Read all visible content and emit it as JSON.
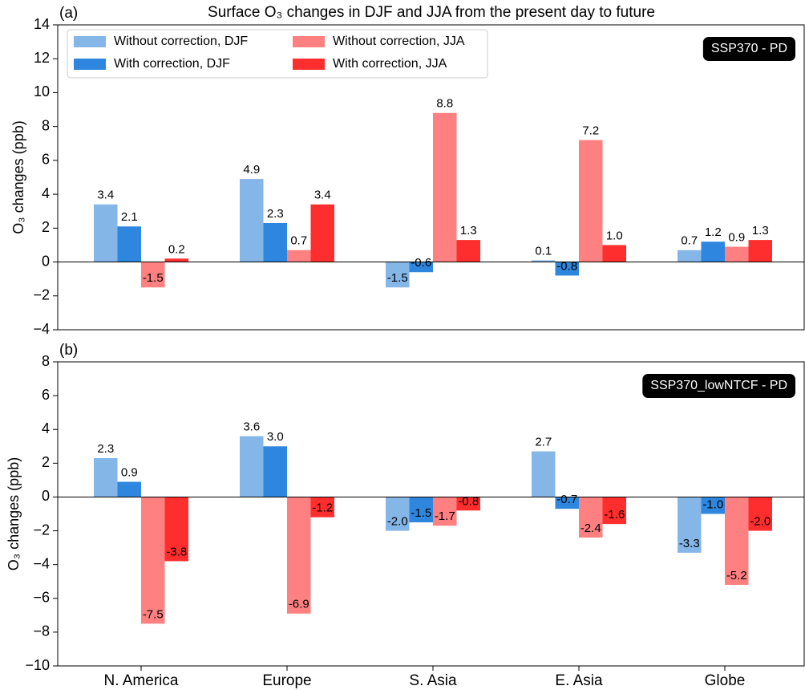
{
  "chart_data": [
    {
      "type": "bar",
      "title": "Surface O₃ changes in DJF and JJA from the present day to future",
      "panel_label": "(a)",
      "ylabel": "O₃ changes (ppb)",
      "annotation": "SSP370 - PD",
      "legend": "upper left",
      "ylim": [
        -4,
        14
      ],
      "yticks": [
        {
          "value": -4,
          "label": "−4"
        },
        {
          "value": -2,
          "label": "−2"
        },
        0,
        2,
        4,
        6,
        8,
        10,
        12,
        14
      ],
      "series": [
        {
          "name": "Without correction, DJF",
          "color": "#85b6e8",
          "values": [
            3.4,
            4.9,
            -1.5,
            0.1,
            0.7
          ],
          "value_labels": [
            "3.4",
            "4.9",
            "-1.5",
            "0.1",
            "0.7"
          ]
        },
        {
          "name": "With correction, DJF",
          "color": "#2f86de",
          "values": [
            2.1,
            2.3,
            -0.6,
            -0.8,
            1.2
          ],
          "value_labels": [
            "2.1",
            "2.3",
            "-0.6",
            "-0.8",
            "1.2"
          ]
        },
        {
          "name": "Without correction, JJA",
          "color": "#ff8080",
          "values": [
            -1.5,
            0.7,
            8.8,
            7.2,
            0.9
          ],
          "value_labels": [
            "-1.5",
            "0.7",
            "8.8",
            "7.2",
            "0.9"
          ]
        },
        {
          "name": "With correction, JJA",
          "color": "#ff2e2e",
          "values": [
            0.2,
            3.4,
            1.3,
            1.0,
            1.3
          ],
          "value_labels": [
            "0.2",
            "3.4",
            "1.3",
            "1.0",
            "1.3"
          ]
        }
      ]
    },
    {
      "type": "bar",
      "panel_label": "(b)",
      "ylabel": "O₃ changes (ppb)",
      "annotation": "SSP370_lowNTCF - PD",
      "categories": [
        "N. America",
        "Europe",
        "S. Asia",
        "E. Asia",
        "Globe"
      ],
      "ylim": [
        -10,
        8
      ],
      "yticks": [
        {
          "value": -10,
          "label": "−10"
        },
        {
          "value": -8,
          "label": "−8"
        },
        {
          "value": -6,
          "label": "−6"
        },
        {
          "value": -4,
          "label": "−4"
        },
        {
          "value": -2,
          "label": "−2"
        },
        0,
        2,
        4,
        6,
        8
      ],
      "series": [
        {
          "color": "#85b6e8",
          "values": [
            2.3,
            3.6,
            -2.0,
            2.7,
            -3.3
          ],
          "value_labels": [
            "2.3",
            "3.6",
            "-2.0",
            "2.7",
            "-3.3"
          ]
        },
        {
          "color": "#2f86de",
          "values": [
            0.9,
            3.0,
            -1.5,
            -0.7,
            -1.0
          ],
          "value_labels": [
            "0.9",
            "3.0",
            "-1.5",
            "-0.7",
            "-1.0"
          ]
        },
        {
          "color": "#ff8080",
          "values": [
            -7.5,
            -6.9,
            -1.7,
            -2.4,
            -5.2
          ],
          "value_labels": [
            "-7.5",
            "-6.9",
            "-1.7",
            "-2.4",
            "-5.2"
          ]
        },
        {
          "color": "#ff2e2e",
          "values": [
            -3.8,
            -1.2,
            -0.8,
            -1.6,
            -2.0
          ],
          "value_labels": [
            "-3.8",
            "-1.2",
            "-0.8",
            "-1.6",
            "-2.0"
          ]
        }
      ]
    }
  ]
}
